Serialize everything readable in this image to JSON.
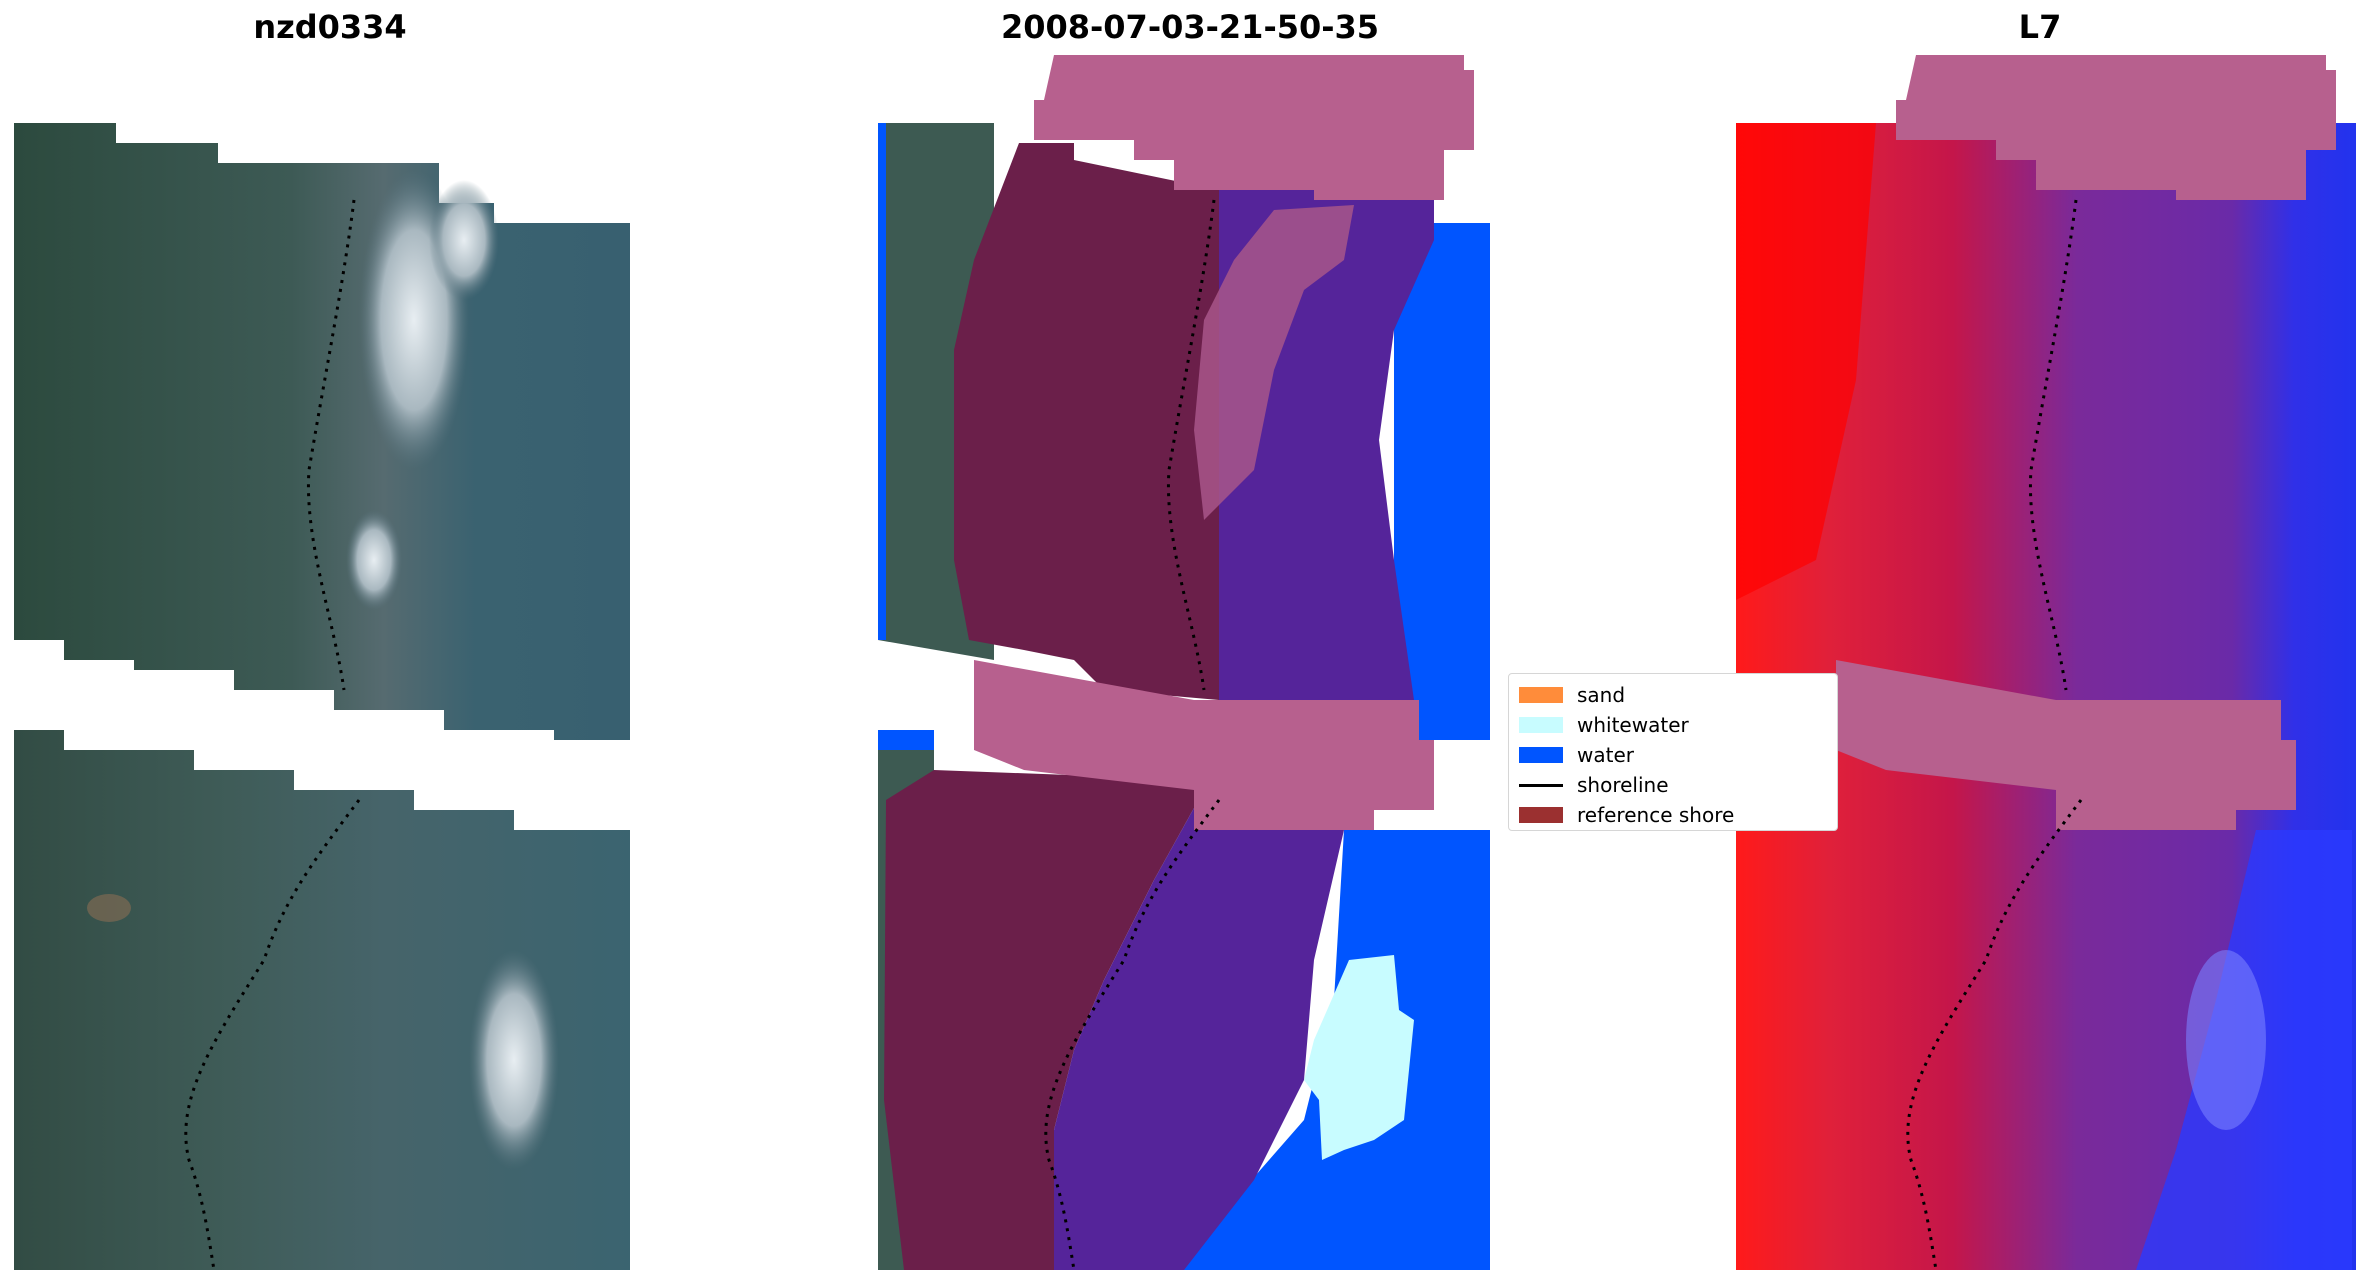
{
  "panels": {
    "left_title": "nzd0334",
    "middle_title": "2008-07-03-21-50-35",
    "right_title": "L7"
  },
  "legend": {
    "items": [
      {
        "label": "sand",
        "color": "#ff8c3a",
        "kind": "patch"
      },
      {
        "label": "whitewater",
        "color": "#c8fcff",
        "kind": "patch"
      },
      {
        "label": "water",
        "color": "#0055ff",
        "kind": "patch"
      },
      {
        "label": "shoreline",
        "color": "#000000",
        "kind": "line"
      },
      {
        "label": "reference shore",
        "color": "#9b3030",
        "kind": "patch"
      }
    ]
  },
  "colors": {
    "rgb_land": "#2f4a45",
    "rgb_water": "#3a6370",
    "land_overlay": "#6b1f4a",
    "buffer_overlay": "#b7608e",
    "sea_overlay": "#55249a",
    "water_class": "#0055ff",
    "whitewater_class": "#c8fcff",
    "index_red": "#c8143c",
    "index_blue": "#2233ee"
  }
}
